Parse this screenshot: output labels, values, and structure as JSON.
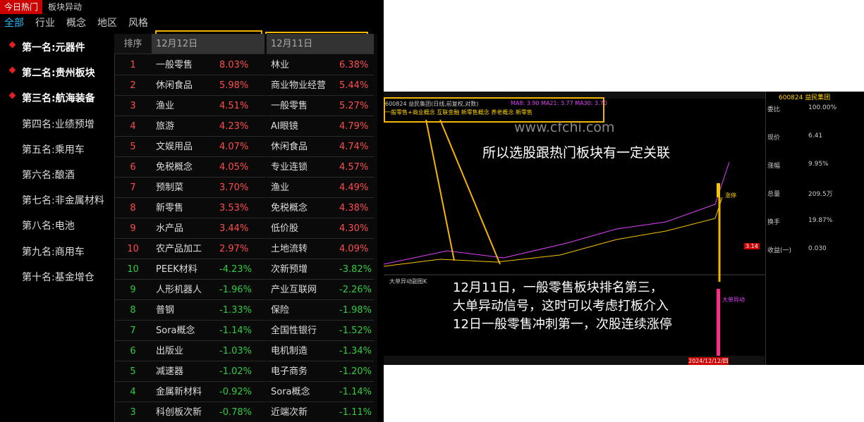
{
  "top_tabs": [
    "今日热门",
    "板块异动"
  ],
  "sub_tabs": [
    "全部",
    "行业",
    "概念",
    "地区",
    "风格"
  ],
  "ranking": [
    "第一名:元器件",
    "第二名:贵州板块",
    "第三名:航海装备",
    "第四名:业绩预增",
    "第五名:乘用车",
    "第六名:酿酒",
    "第七名:非金属材料",
    "第八名:电池",
    "第九名:商用车",
    "第十名:基金增仓"
  ],
  "table": {
    "headers": [
      "排序",
      "12月12日",
      "12月11日"
    ],
    "rows": [
      [
        1,
        "一般零售",
        "8.03%",
        "林业",
        "6.38%"
      ],
      [
        2,
        "休闲食品",
        "5.98%",
        "商业物业经营",
        "5.44%"
      ],
      [
        3,
        "渔业",
        "4.51%",
        "一般零售",
        "5.27%"
      ],
      [
        4,
        "旅游",
        "4.23%",
        "AI眼镜",
        "4.79%"
      ],
      [
        5,
        "文娱用品",
        "4.07%",
        "休闲食品",
        "4.74%"
      ],
      [
        6,
        "免税概念",
        "4.05%",
        "专业连锁",
        "4.57%"
      ],
      [
        7,
        "预制菜",
        "3.70%",
        "渔业",
        "4.49%"
      ],
      [
        8,
        "新零售",
        "3.53%",
        "免税概念",
        "4.38%"
      ],
      [
        9,
        "水产品",
        "3.44%",
        "低价股",
        "4.30%"
      ],
      [
        10,
        "农产品加工",
        "2.97%",
        "土地流转",
        "4.09%"
      ],
      [
        10,
        "PEEK材料",
        "-4.23%",
        "次新预增",
        "-3.82%"
      ],
      [
        9,
        "人形机器人",
        "-1.96%",
        "产业互联网",
        "-2.26%"
      ],
      [
        8,
        "普钢",
        "-1.33%",
        "保险",
        "-1.98%"
      ],
      [
        7,
        "Sora概念",
        "-1.14%",
        "全国性银行",
        "-1.52%"
      ],
      [
        6,
        "出版业",
        "-1.03%",
        "电机制造",
        "-1.34%"
      ],
      [
        5,
        "减速器",
        "-1.02%",
        "电子商务",
        "-1.20%"
      ],
      [
        4,
        "金属新材料",
        "-0.92%",
        "Sora概念",
        "-1.14%"
      ],
      [
        3,
        "科创板次新",
        "-0.78%",
        "近端次新",
        "-1.11%"
      ]
    ]
  },
  "stock": {
    "header": "600824 益民集团",
    "title_line": "600824 益民集团(日线,前复权,对数)",
    "ma_line": "MA8: 3.90  MA21: 3.77  MA30: 3.70",
    "concepts": "一般零售+商业概念 互联金融 新零售概念 养老概念 新零售",
    "sub_panel": "大单异动副图K",
    "signal": "大单异动",
    "limit_up": "涨停",
    "quotes": [
      [
        "委比",
        "100.00%"
      ],
      [
        "现价",
        "6.41"
      ],
      [
        "涨幅",
        "9.95%"
      ],
      [
        "总量",
        "209.5万"
      ],
      [
        "换手",
        "19.87%"
      ],
      [
        "收益(一)",
        "0.030"
      ]
    ],
    "last_price": "3.14",
    "axis_date": "2024/12/12/四"
  },
  "watermark": "www.cfchi.com",
  "annotation_top": "所以选股跟热门板块有一定关联",
  "annotation_bottom": [
    "12月11日，一般零售板块排名第三，",
    "大单异动信号，这时可以考虑打板介入",
    "12日一般零售冲刺第一，次股连续涨停"
  ]
}
